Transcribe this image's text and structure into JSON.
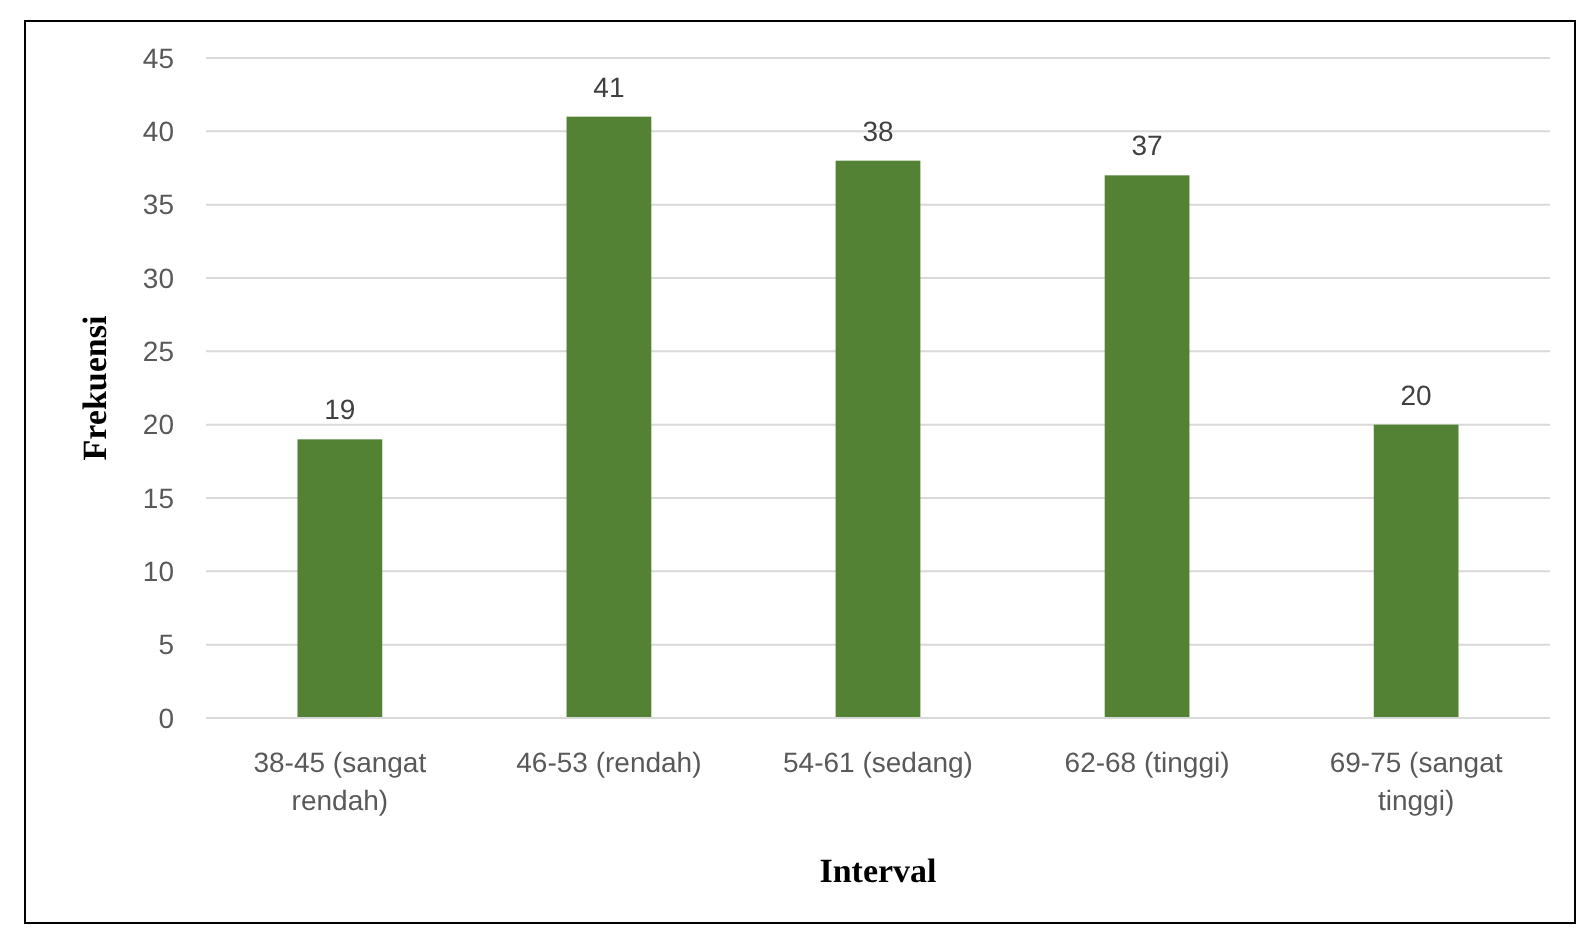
{
  "chart_data": {
    "type": "bar",
    "xlabel": "Interval",
    "ylabel": "Frekuensi",
    "categories": [
      "38-45 (sangat rendah)",
      "46-53 (rendah)",
      "54-61 (sedang)",
      "62-68 (tinggi)",
      "69-75 (sangat tinggi)"
    ],
    "values": [
      19,
      41,
      38,
      37,
      20
    ],
    "color": "#548235",
    "ylim": [
      0,
      45
    ],
    "yticks": [
      0,
      5,
      10,
      15,
      20,
      25,
      30,
      35,
      40,
      45
    ],
    "grid": "y",
    "data_labels": true
  }
}
